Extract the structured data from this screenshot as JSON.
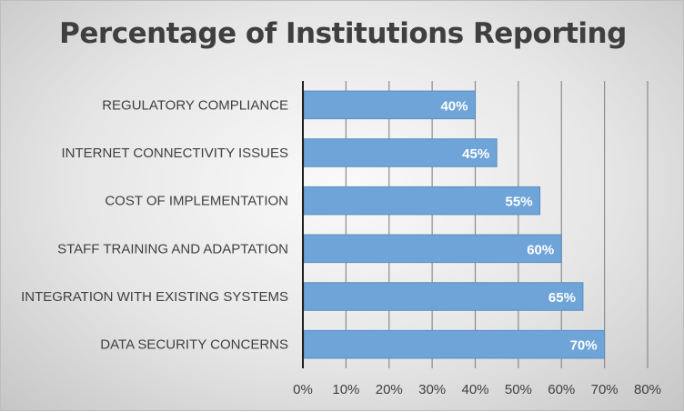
{
  "chart_data": {
    "type": "bar",
    "orientation": "horizontal",
    "title": "Percentage of Institutions Reporting",
    "categories": [
      "REGULATORY COMPLIANCE",
      "INTERNET CONNECTIVITY ISSUES",
      "COST OF IMPLEMENTATION",
      "STAFF TRAINING AND ADAPTATION",
      "INTEGRATION WITH EXISTING SYSTEMS",
      "DATA SECURITY CONCERNS"
    ],
    "values": [
      40,
      45,
      55,
      60,
      65,
      70
    ],
    "data_labels": [
      "40%",
      "45%",
      "55%",
      "60%",
      "65%",
      "70%"
    ],
    "xlim": [
      0,
      80
    ],
    "x_ticks": [
      0,
      10,
      20,
      30,
      40,
      50,
      60,
      70,
      80
    ],
    "x_tick_labels": [
      "0%",
      "10%",
      "20%",
      "30%",
      "40%",
      "50%",
      "60%",
      "70%",
      "80%"
    ],
    "grid": "vertical",
    "legend": "none",
    "bar_color": "#6fa4d8",
    "bar_edge_color": "#5a8fc4"
  }
}
